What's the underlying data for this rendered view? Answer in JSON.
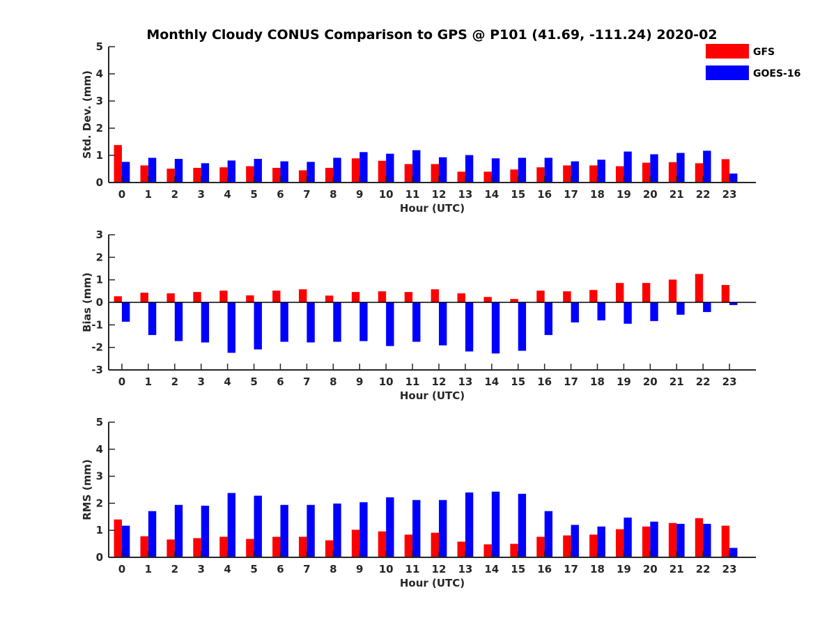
{
  "chart_data": [
    {
      "type": "bar",
      "title": "Monthly Cloudy CONUS Comparison to GPS @ P101 (41.69, -111.24) 2020-02",
      "xlabel": "Hour (UTC)",
      "ylabel": "Std. Dev. (mm)",
      "ylim": [
        0,
        5
      ],
      "yticks": [
        0,
        1,
        2,
        3,
        4,
        5
      ],
      "categories": [
        "0",
        "1",
        "2",
        "3",
        "4",
        "5",
        "6",
        "7",
        "8",
        "9",
        "10",
        "11",
        "12",
        "13",
        "14",
        "15",
        "16",
        "17",
        "18",
        "19",
        "20",
        "21",
        "22",
        "23"
      ],
      "legend": "top-right",
      "series": [
        {
          "name": "GFS",
          "color": "#ff0000",
          "values": [
            1.38,
            0.63,
            0.51,
            0.54,
            0.56,
            0.6,
            0.54,
            0.45,
            0.54,
            0.89,
            0.8,
            0.68,
            0.68,
            0.4,
            0.4,
            0.48,
            0.56,
            0.63,
            0.63,
            0.6,
            0.73,
            0.75,
            0.71,
            0.86
          ]
        },
        {
          "name": "GOES-16",
          "color": "#0000ff",
          "values": [
            0.76,
            0.91,
            0.87,
            0.71,
            0.81,
            0.87,
            0.78,
            0.76,
            0.91,
            1.12,
            1.06,
            1.19,
            0.93,
            1.01,
            0.89,
            0.91,
            0.91,
            0.78,
            0.84,
            1.14,
            1.04,
            1.09,
            1.17,
            0.33
          ]
        }
      ]
    },
    {
      "type": "bar",
      "xlabel": "Hour (UTC)",
      "ylabel": "Bias (mm)",
      "ylim": [
        -3,
        3
      ],
      "yticks": [
        -3,
        -2,
        -1,
        0,
        1,
        2,
        3
      ],
      "categories": [
        "0",
        "1",
        "2",
        "3",
        "4",
        "5",
        "6",
        "7",
        "8",
        "9",
        "10",
        "11",
        "12",
        "13",
        "14",
        "15",
        "16",
        "17",
        "18",
        "19",
        "20",
        "21",
        "22",
        "23"
      ],
      "series": [
        {
          "name": "GFS",
          "color": "#ff0000",
          "values": [
            0.27,
            0.43,
            0.4,
            0.46,
            0.52,
            0.31,
            0.52,
            0.58,
            0.3,
            0.46,
            0.49,
            0.46,
            0.58,
            0.4,
            0.24,
            0.15,
            0.52,
            0.49,
            0.55,
            0.86,
            0.86,
            1.01,
            1.26,
            0.77
          ]
        },
        {
          "name": "GOES-16",
          "color": "#0000ff",
          "values": [
            -0.86,
            -1.45,
            -1.72,
            -1.78,
            -2.24,
            -2.09,
            -1.75,
            -1.78,
            -1.75,
            -1.72,
            -1.94,
            -1.75,
            -1.91,
            -2.18,
            -2.27,
            -2.15,
            -1.45,
            -0.89,
            -0.8,
            -0.95,
            -0.83,
            -0.55,
            -0.43,
            -0.12
          ]
        }
      ]
    },
    {
      "type": "bar",
      "xlabel": "Hour (UTC)",
      "ylabel": "RMS (mm)",
      "ylim": [
        0,
        5
      ],
      "yticks": [
        0,
        1,
        2,
        3,
        4,
        5
      ],
      "categories": [
        "0",
        "1",
        "2",
        "3",
        "4",
        "5",
        "6",
        "7",
        "8",
        "9",
        "10",
        "11",
        "12",
        "13",
        "14",
        "15",
        "16",
        "17",
        "18",
        "19",
        "20",
        "21",
        "22",
        "23"
      ],
      "series": [
        {
          "name": "GFS",
          "color": "#ff0000",
          "values": [
            1.4,
            0.78,
            0.66,
            0.71,
            0.76,
            0.68,
            0.76,
            0.76,
            0.63,
            1.02,
            0.96,
            0.84,
            0.91,
            0.58,
            0.48,
            0.5,
            0.76,
            0.81,
            0.84,
            1.04,
            1.14,
            1.27,
            1.45,
            1.17
          ]
        },
        {
          "name": "GOES-16",
          "color": "#0000ff",
          "values": [
            1.17,
            1.71,
            1.94,
            1.91,
            2.38,
            2.28,
            1.94,
            1.94,
            1.99,
            2.04,
            2.22,
            2.12,
            2.12,
            2.4,
            2.43,
            2.35,
            1.71,
            1.2,
            1.14,
            1.47,
            1.32,
            1.24,
            1.24,
            0.35
          ]
        }
      ]
    }
  ]
}
